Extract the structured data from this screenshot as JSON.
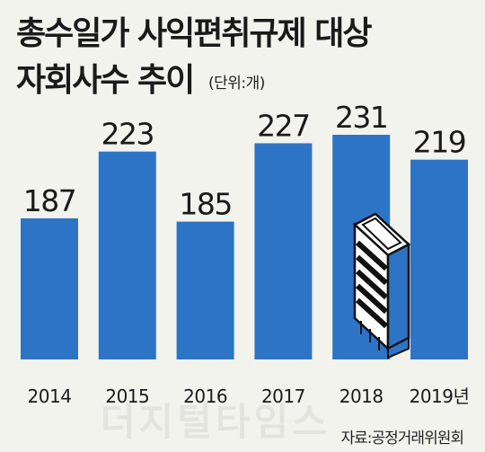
{
  "header": {
    "title_line1": "총수일가 사익편취규제 대상",
    "title_line2": "자회사수 추이",
    "unit": "(단위:개)"
  },
  "footer": {
    "source": "자료:공정거래위원회",
    "watermark": "더지털타임스"
  },
  "colors": {
    "bar": "#2e74c6",
    "background": "#f3f3ee",
    "text": "#1a1a1a"
  },
  "chart_data": {
    "type": "bar",
    "categories": [
      "2014",
      "2015",
      "2016",
      "2017",
      "2018",
      "2019년"
    ],
    "values": [
      187,
      223,
      185,
      227,
      231,
      219
    ],
    "title": "총수일가 사익편취규제 대상 자회사수 추이",
    "xlabel": "",
    "ylabel": "",
    "unit": "(단위:개)",
    "ylim": [
      0,
      231
    ],
    "grid": false,
    "legend": "none",
    "data_labels": true
  }
}
